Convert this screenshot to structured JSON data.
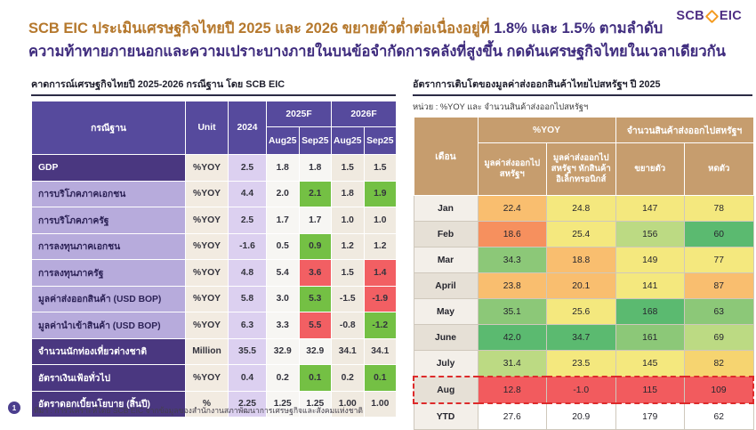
{
  "slide": {
    "logo": {
      "scb": "SCB",
      "eic": "EIC"
    },
    "title_line1_orange": "SCB EIC ประเมินเศรษฐกิจไทยปี 2025 และ 2026 ขยายตัวต่ำต่อเนื่องอยู่ที่ ",
    "title_line1_purple": "1.8% และ 1.5% ตามลำดับ",
    "title_line2": "ความท้าทายภายนอกและความเปราะบางภายในบนข้อจำกัดการคลังที่สูงขึ้น กดดันเศรษฐกิจไทยในเวลาเดียวกัน",
    "page_number": "1",
    "source_note": "ที่มา : การวิเคราะห์โดย SCB EIC จากข้อมูลของสำนักงานสภาพัฒนาการเศรษฐกิจและสังคมแห่งชาติ"
  },
  "colors": {
    "title_orange": "#B5782D",
    "title_purple": "#3F2C7E",
    "table_header_purple": "#564A9D",
    "row_label_dark_purple": "#4A3780",
    "row_label_light_purple": "#B7ABDC",
    "right_header_tan": "#C69D6E",
    "positive_green": "#74C044",
    "negative_red": "#F25F63",
    "heatmap_green_strong": "#5BBA70",
    "heatmap_green_mid": "#8CC878",
    "heatmap_green_light": "#BCDA83",
    "heatmap_yellow": "#F4E87E",
    "heatmap_gold": "#F6D470",
    "heatmap_orange": "#F9BE6F",
    "heatmap_orange_strong": "#F6905E",
    "heatmap_red": "#F25B5E"
  },
  "left_table": {
    "title": "คาดการณ์เศรษฐกิจไทยปี 2025-2026 กรณีฐาน โดย SCB EIC",
    "headers": {
      "scenario": "กรณีฐาน",
      "unit": "Unit",
      "y2024": "2024",
      "f2025": "2025F",
      "f2026": "2026F",
      "aug25": "Aug25",
      "sep25": "Sep25",
      "aug26": "Aug25",
      "sep26": "Sep25"
    },
    "rows": [
      {
        "label": "GDP",
        "style": "dark",
        "unit": "%YOY",
        "y2024": "2.5",
        "aug25": "1.8",
        "sep25": "1.8",
        "aug26": "1.5",
        "sep26": "1.5",
        "sep25_color": null,
        "sep26_color": null
      },
      {
        "label": "การบริโภคภาคเอกชน",
        "style": "light",
        "unit": "%YOY",
        "y2024": "4.4",
        "aug25": "2.0",
        "sep25": "2.1",
        "aug26": "1.8",
        "sep26": "1.9",
        "sep25_color": "green",
        "sep26_color": "green"
      },
      {
        "label": "การบริโภคภาครัฐ",
        "style": "light",
        "unit": "%YOY",
        "y2024": "2.5",
        "aug25": "1.7",
        "sep25": "1.7",
        "aug26": "1.0",
        "sep26": "1.0",
        "sep25_color": null,
        "sep26_color": null
      },
      {
        "label": "การลงทุนภาคเอกชน",
        "style": "light",
        "unit": "%YOY",
        "y2024": "-1.6",
        "aug25": "0.5",
        "sep25": "0.9",
        "aug26": "1.2",
        "sep26": "1.2",
        "sep25_color": "green",
        "sep26_color": null
      },
      {
        "label": "การลงทุนภาครัฐ",
        "style": "light",
        "unit": "%YOY",
        "y2024": "4.8",
        "aug25": "5.4",
        "sep25": "3.6",
        "aug26": "1.5",
        "sep26": "1.4",
        "sep25_color": "red",
        "sep26_color": "red"
      },
      {
        "label": "มูลค่าส่งออกสินค้า (USD BOP)",
        "style": "light",
        "unit": "%YOY",
        "y2024": "5.8",
        "aug25": "3.0",
        "sep25": "5.3",
        "aug26": "-1.5",
        "sep26": "-1.9",
        "sep25_color": "green",
        "sep26_color": "red"
      },
      {
        "label": "มูลค่านำเข้าสินค้า (USD BOP)",
        "style": "light",
        "unit": "%YOY",
        "y2024": "6.3",
        "aug25": "3.3",
        "sep25": "5.5",
        "aug26": "-0.8",
        "sep26": "-1.2",
        "sep25_color": "red",
        "sep26_color": "green"
      },
      {
        "label": "จำนวนนักท่องเที่ยวต่างชาติ",
        "style": "dark",
        "unit": "Million",
        "y2024": "35.5",
        "aug25": "32.9",
        "sep25": "32.9",
        "aug26": "34.1",
        "sep26": "34.1",
        "sep25_color": null,
        "sep26_color": null
      },
      {
        "label": "อัตราเงินเฟ้อทั่วไป",
        "style": "dark",
        "unit": "%YOY",
        "y2024": "0.4",
        "aug25": "0.2",
        "sep25": "0.1",
        "aug26": "0.2",
        "sep26": "0.1",
        "sep25_color": "green",
        "sep26_color": "green"
      },
      {
        "label": "อัตราดอกเบี้ยนโยบาย (สิ้นปี)",
        "style": "dark",
        "unit": "%",
        "y2024": "2.25",
        "aug25": "1.25",
        "sep25": "1.25",
        "aug26": "1.00",
        "sep26": "1.00",
        "sep25_color": null,
        "sep26_color": null
      }
    ]
  },
  "right_table": {
    "title": "อัตราการเติบโตของมูลค่าส่งออกสินค้าไทยไปสหรัฐฯ ปี 2025",
    "unit_note": "หน่วย : %YOY และ จำนวนสินค้าส่งออกไปสหรัฐฯ",
    "headers": {
      "month": "เดือน",
      "group_yoy": "%YOY",
      "group_count": "จำนวนสินค้าส่งออกไปสหรัฐฯ",
      "col_export": "มูลค่าส่งออกไป สหรัฐฯ",
      "col_export_ex": "มูลค่าส่งออกไป สหรัฐฯ หักสินค้า อิเล็กทรอนิกส์",
      "col_expand": "ขยายตัว",
      "col_contract": "หดตัว"
    },
    "rows": [
      {
        "month": "Jan",
        "values": [
          "22.4",
          "24.8",
          "147",
          "78"
        ],
        "colors": [
          "orange",
          "yellow",
          "yellow",
          "yellow"
        ],
        "highlight": false
      },
      {
        "month": "Feb",
        "values": [
          "18.6",
          "25.4",
          "156",
          "60"
        ],
        "colors": [
          "orange-strong",
          "yellow",
          "green-light",
          "green-strong"
        ],
        "highlight": false
      },
      {
        "month": "Mar",
        "values": [
          "34.3",
          "18.8",
          "149",
          "77"
        ],
        "colors": [
          "green-mid",
          "orange",
          "yellow",
          "yellow"
        ],
        "highlight": false
      },
      {
        "month": "April",
        "values": [
          "23.8",
          "20.1",
          "141",
          "87"
        ],
        "colors": [
          "orange",
          "orange",
          "yellow",
          "orange"
        ],
        "highlight": false
      },
      {
        "month": "May",
        "values": [
          "35.1",
          "25.6",
          "168",
          "63"
        ],
        "colors": [
          "green-mid",
          "yellow",
          "green-strong",
          "green-mid"
        ],
        "highlight": false
      },
      {
        "month": "June",
        "values": [
          "42.0",
          "34.7",
          "161",
          "69"
        ],
        "colors": [
          "green-strong",
          "green-strong",
          "green-mid",
          "green-light"
        ],
        "highlight": false
      },
      {
        "month": "July",
        "values": [
          "31.4",
          "23.5",
          "145",
          "82"
        ],
        "colors": [
          "green-light",
          "yellow",
          "yellow",
          "gold"
        ],
        "highlight": false
      },
      {
        "month": "Aug",
        "values": [
          "12.8",
          "-1.0",
          "115",
          "109"
        ],
        "colors": [
          "red",
          "red",
          "red",
          "red"
        ],
        "highlight": true
      },
      {
        "month": "YTD",
        "values": [
          "27.6",
          "20.9",
          "179",
          "62"
        ],
        "colors": [
          "none",
          "none",
          "none",
          "none"
        ],
        "highlight": false
      }
    ]
  }
}
